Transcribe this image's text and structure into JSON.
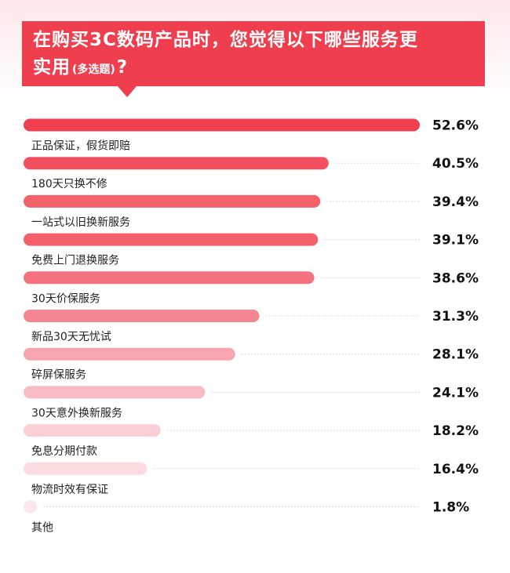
{
  "title": {
    "line1": "在购买3C数码产品时，您觉得以下哪些服务更",
    "line2": "实用",
    "note": "(多选题)",
    "mark": "?"
  },
  "chart_data": {
    "type": "bar",
    "orientation": "horizontal",
    "categories": [
      "正品保证，假货即赔",
      "180天只换不修",
      "一站式以旧换新服务",
      "免费上门退换服务",
      "30天价保服务",
      "新品30天无忧试",
      "碎屏保服务",
      "30天意外换新服务",
      "免息分期付款",
      "物流时效有保证",
      "其他"
    ],
    "values": [
      52.6,
      40.5,
      39.4,
      39.1,
      38.6,
      31.3,
      28.1,
      24.1,
      18.2,
      16.4,
      1.8
    ],
    "value_labels": [
      "52.6%",
      "40.5%",
      "39.4%",
      "39.1%",
      "38.6%",
      "31.3%",
      "28.1%",
      "24.1%",
      "18.2%",
      "16.4%",
      "1.8%"
    ],
    "colors": [
      "#f04050",
      "#f2505e",
      "#f3616d",
      "#f3616d",
      "#f47280",
      "#f58591",
      "#f7a5b0",
      "#f8bcc5",
      "#fad0d6",
      "#fbdde1",
      "#fce6ea"
    ],
    "guide_color": "#d6d6d6",
    "grid": false,
    "legend": "none"
  }
}
